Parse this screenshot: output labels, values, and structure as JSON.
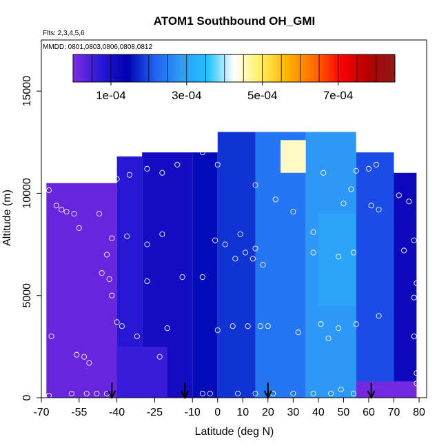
{
  "chart_data": {
    "type": "heatmap",
    "title": "ATOM1 Southbound OH_GMI",
    "subtitle_flights": "Flts: 2,3,4,5,6",
    "subtitle_dates": "MMDD: 0801,0803,0806,0808,0812",
    "xlabel": "Latitude (deg N)",
    "ylabel": "Altitude (m)",
    "xlim": [
      -70,
      83
    ],
    "ylim": [
      0,
      17500
    ],
    "x_ticks": [
      -70,
      -55,
      -40,
      -25,
      -10,
      0,
      10,
      20,
      30,
      40,
      50,
      60,
      70,
      80
    ],
    "y_ticks": [
      0,
      5000,
      10000,
      15000
    ],
    "colorbar": {
      "range": [
        0,
        0.00085
      ],
      "tick_values": [
        0.0001,
        0.0003,
        0.0005,
        0.0007
      ],
      "tick_labels": [
        "1e-04",
        "3e-04",
        "5e-04",
        "7e-04"
      ],
      "colors": [
        "#7f2be0",
        "#2a1ad8",
        "#0000b0",
        "#1e5ef0",
        "#2f9bf6",
        "#1ec1ff",
        "#ffffff",
        "#ffef5a",
        "#ffb200",
        "#ff6a00",
        "#ff0000",
        "#b30000",
        "#8b1a1a"
      ]
    },
    "arrow_latitudes": [
      -42,
      -13,
      20,
      61
    ],
    "regions": [
      {
        "lat": [
          -68,
          -40
        ],
        "alt": [
          0,
          10500
        ],
        "value": 2e-05
      },
      {
        "lat": [
          -40,
          -30
        ],
        "alt": [
          0,
          11800
        ],
        "value": 8e-05
      },
      {
        "lat": [
          -30,
          -10
        ],
        "alt": [
          0,
          12000
        ],
        "value": 0.00011
      },
      {
        "lat": [
          -10,
          0
        ],
        "alt": [
          0,
          12000
        ],
        "value": 0.00015
      },
      {
        "lat": [
          0,
          15
        ],
        "alt": [
          0,
          13000
        ],
        "value": 0.00018
      },
      {
        "lat": [
          15,
          35
        ],
        "alt": [
          0,
          13000
        ],
        "value": 0.00024
      },
      {
        "lat": [
          35,
          55
        ],
        "alt": [
          0,
          13000
        ],
        "value": 0.00028
      },
      {
        "lat": [
          55,
          70
        ],
        "alt": [
          0,
          12000
        ],
        "value": 0.0002
      },
      {
        "lat": [
          70,
          79
        ],
        "alt": [
          0,
          11000
        ],
        "value": 0.00012
      },
      {
        "lat": [
          25,
          35
        ],
        "alt": [
          11000,
          12600
        ],
        "value": 0.00045
      },
      {
        "lat": [
          40,
          55
        ],
        "alt": [
          4500,
          9000
        ],
        "value": 0.0003
      },
      {
        "lat": [
          -40,
          -20
        ],
        "alt": [
          0,
          2500
        ],
        "value": 6e-05
      },
      {
        "lat": [
          55,
          79
        ],
        "alt": [
          0,
          800
        ],
        "value": 1e-05
      }
    ],
    "points": [
      [
        -67,
        10150
      ],
      [
        -66,
        3000
      ],
      [
        -67,
        100
      ],
      [
        -64,
        9400
      ],
      [
        -62,
        9200
      ],
      [
        -60,
        9100
      ],
      [
        -57,
        9000
      ],
      [
        -55,
        8300
      ],
      [
        -56,
        2100
      ],
      [
        -53,
        2000
      ],
      [
        -51,
        1700
      ],
      [
        -58,
        200
      ],
      [
        -52,
        200
      ],
      [
        -48,
        200
      ],
      [
        -44,
        200
      ],
      [
        -45,
        11600
      ],
      [
        -40,
        10700
      ],
      [
        -35,
        10900
      ],
      [
        -28,
        11200
      ],
      [
        -22,
        11000
      ],
      [
        -16,
        11400
      ],
      [
        -6,
        12000
      ],
      [
        0,
        11400
      ],
      [
        -47,
        9000
      ],
      [
        -42,
        7800
      ],
      [
        -36,
        7900
      ],
      [
        -28,
        7500
      ],
      [
        -22,
        8000
      ],
      [
        -44,
        7000
      ],
      [
        -46,
        6100
      ],
      [
        -43,
        5800
      ],
      [
        -42,
        5000
      ],
      [
        -40,
        3700
      ],
      [
        -38,
        3500
      ],
      [
        -32,
        3000
      ],
      [
        -20,
        3400
      ],
      [
        -23,
        2000
      ],
      [
        -28,
        5700
      ],
      [
        -14,
        5900
      ],
      [
        -6,
        5900
      ],
      [
        -1,
        7700
      ],
      [
        3,
        7500
      ],
      [
        7,
        6800
      ],
      [
        11,
        7100
      ],
      [
        14,
        6800
      ],
      [
        9,
        8000
      ],
      [
        15,
        7300
      ],
      [
        18,
        6500
      ],
      [
        6,
        3500
      ],
      [
        12,
        3500
      ],
      [
        17,
        3500
      ],
      [
        20,
        3500
      ],
      [
        0,
        3300
      ],
      [
        -3,
        200
      ],
      [
        -6,
        200
      ],
      [
        8,
        200
      ],
      [
        15,
        200
      ],
      [
        22,
        200
      ],
      [
        30,
        200
      ],
      [
        38,
        200
      ],
      [
        45,
        200
      ],
      [
        49,
        400
      ],
      [
        54,
        200
      ],
      [
        15,
        10400
      ],
      [
        23,
        9700
      ],
      [
        30,
        9100
      ],
      [
        38,
        8100
      ],
      [
        42,
        11000
      ],
      [
        50,
        9500
      ],
      [
        55,
        11100
      ],
      [
        60,
        11200
      ],
      [
        61,
        9400
      ],
      [
        64,
        9200
      ],
      [
        72,
        9900
      ],
      [
        76,
        9600
      ],
      [
        78,
        7700
      ],
      [
        74,
        7200
      ],
      [
        79,
        5600
      ],
      [
        78,
        4900
      ],
      [
        78,
        3000
      ],
      [
        79,
        1200
      ],
      [
        79,
        700
      ],
      [
        64,
        4000
      ],
      [
        55,
        3600
      ],
      [
        48,
        3400
      ],
      [
        41,
        3600
      ],
      [
        32,
        3200
      ],
      [
        38,
        7100
      ],
      [
        48,
        6900
      ],
      [
        54,
        7100
      ],
      [
        44,
        2900
      ],
      [
        63,
        11400
      ],
      [
        53,
        10200
      ]
    ]
  }
}
